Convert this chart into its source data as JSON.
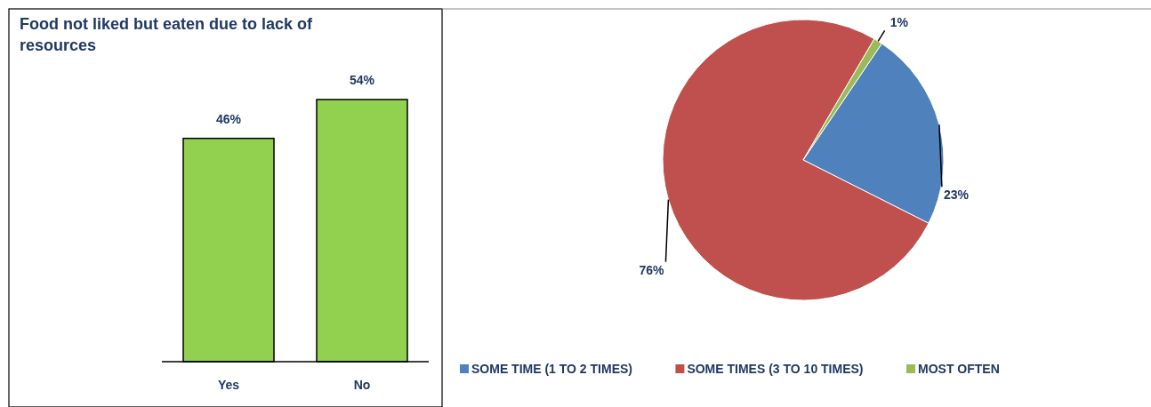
{
  "chart_data": [
    {
      "type": "bar",
      "title": "Food not liked but eaten due to lack of resources",
      "categories": [
        "Yes",
        "No"
      ],
      "values": [
        46,
        54
      ],
      "color": "#92d050",
      "tick_labels": "x",
      "data_labels": true,
      "value_labels": [
        "46%",
        "54%"
      ]
    },
    {
      "type": "pie",
      "categories": [
        "SOME TIME (1 TO 2 TIMES)",
        "SOME TIMES (3 TO 10 TIMES)",
        "MOST OFTEN"
      ],
      "values": [
        23,
        76,
        1
      ],
      "colors": [
        "#4f81bd",
        "#c0504d",
        "#9bbb59"
      ],
      "data_labels": true,
      "value_labels": [
        "23%",
        "76%",
        "1%"
      ],
      "legend": "bottom"
    }
  ]
}
